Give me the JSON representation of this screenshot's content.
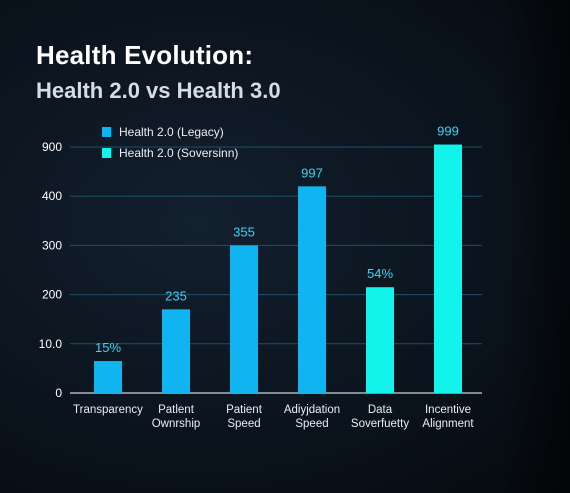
{
  "header": {
    "title": "Health Evolution:",
    "subtitle": "Health 2.0 vs Health 3.0"
  },
  "colors": {
    "legacy": "#0fb4f0",
    "sovereign": "#12f3ec",
    "grid": "#1e4f66",
    "axis_text": "#ffffff",
    "label_text": "#3fd0f5"
  },
  "chart_data": {
    "type": "bar",
    "title": "Health Evolution:",
    "subtitle": "Health 2.0 vs Health 3.0",
    "xlabel": "",
    "ylabel": "",
    "y_ticks": [
      "0",
      "10.0",
      "200",
      "300",
      "400",
      "900"
    ],
    "ylim": [
      0,
      5
    ],
    "grid": true,
    "legend_position": "top-left",
    "series": [
      {
        "name": "Health 2.0 (Legacy)",
        "color": "#0fb4f0"
      },
      {
        "name": "Health 2.0 (Soversinn)",
        "color": "#12f3ec"
      }
    ],
    "categories": [
      [
        "Transparency"
      ],
      [
        "Patlent",
        "Ownrship"
      ],
      [
        "Patient",
        "Speed"
      ],
      [
        "Adiyjdation",
        "Speed"
      ],
      [
        "Data",
        "Soverfuetty"
      ],
      [
        "Incentive",
        "Alignment"
      ]
    ],
    "bars": [
      {
        "value": 0.65,
        "label": "15%",
        "series": 0
      },
      {
        "value": 1.7,
        "label": "235",
        "series": 0
      },
      {
        "value": 3.0,
        "label": "355",
        "series": 0
      },
      {
        "value": 4.2,
        "label": "997",
        "series": 0
      },
      {
        "value": 2.15,
        "label": "54%",
        "series": 1
      },
      {
        "value": 5.05,
        "label": "999",
        "series": 1
      }
    ]
  }
}
